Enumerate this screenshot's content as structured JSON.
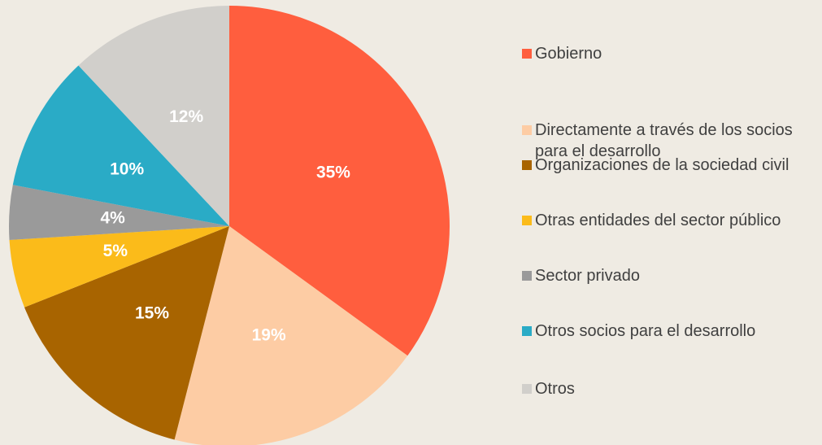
{
  "chart_data": {
    "type": "pie",
    "categories": [
      "Gobierno",
      "Directamente a través de los socios para el desarrollo",
      "Organizaciones de la sociedad civil",
      "Otras entidades del sector público",
      "Sector privado",
      "Otros socios para el desarrollo",
      "Otros"
    ],
    "values": [
      35,
      19,
      15,
      5,
      4,
      10,
      12
    ],
    "value_labels": [
      "35%",
      "19%",
      "15%",
      "5%",
      "4%",
      "10%",
      "12%"
    ],
    "colors": [
      "#ff5e3e",
      "#fdcca4",
      "#a86400",
      "#fbbb1a",
      "#9a9a9a",
      "#2aabc6",
      "#d1cfcb"
    ]
  }
}
